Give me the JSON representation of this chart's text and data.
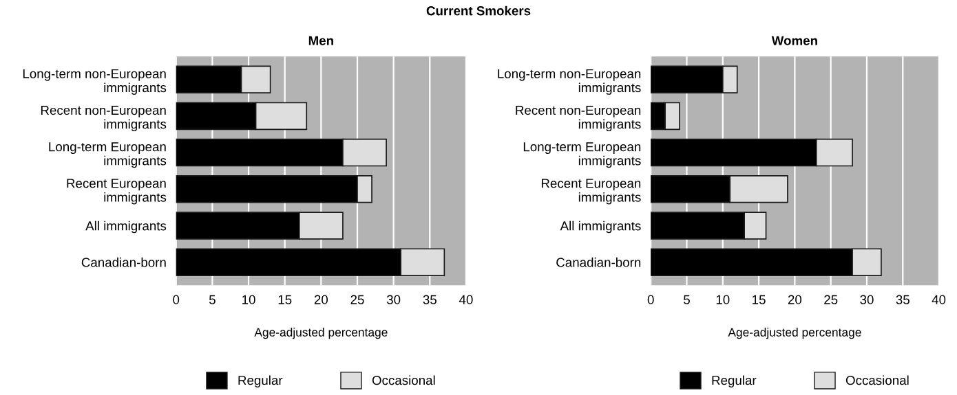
{
  "chart_data": [
    {
      "type": "bar",
      "orientation": "horizontal",
      "stacked": true,
      "title": "Men",
      "annotations": [
        "Current Smokers"
      ],
      "xlabel": "Age-adjusted percentage",
      "categories": [
        "Long-term non-European\nimmigrants",
        "Recent non-European\nimmigrants",
        "Long-term European\nimmigrants",
        "Recent European\nimmigrants",
        "All immigrants",
        "Canadian-born"
      ],
      "series": [
        {
          "name": "Regular",
          "color": "#000000",
          "values": [
            9,
            11,
            23,
            25,
            17,
            31
          ]
        },
        {
          "name": "Occasional",
          "color": "#dedede",
          "values": [
            4,
            7,
            6,
            2,
            6,
            6
          ]
        }
      ],
      "xlim": [
        0,
        40
      ],
      "xticks": [
        0,
        5,
        10,
        15,
        20,
        25,
        30,
        35,
        40
      ],
      "grid": "x",
      "legend": "bottom"
    },
    {
      "type": "bar",
      "orientation": "horizontal",
      "stacked": true,
      "title": "Women",
      "xlabel": "Age-adjusted percentage",
      "categories": [
        "Long-term non-European\nimmigrants",
        "Recent non-European\nimmigrants",
        "Long-term European\nimmigrants",
        "Recent European\nimmigrants",
        "All immigrants",
        "Canadian-born"
      ],
      "series": [
        {
          "name": "Regular",
          "color": "#000000",
          "values": [
            10,
            2,
            23,
            11,
            13,
            28
          ]
        },
        {
          "name": "Occasional",
          "color": "#dedede",
          "values": [
            2,
            2,
            5,
            8,
            3,
            4
          ]
        }
      ],
      "xlim": [
        0,
        40
      ],
      "xticks": [
        0,
        5,
        10,
        15,
        20,
        25,
        30,
        35,
        40
      ],
      "grid": "x",
      "legend": "bottom"
    }
  ]
}
